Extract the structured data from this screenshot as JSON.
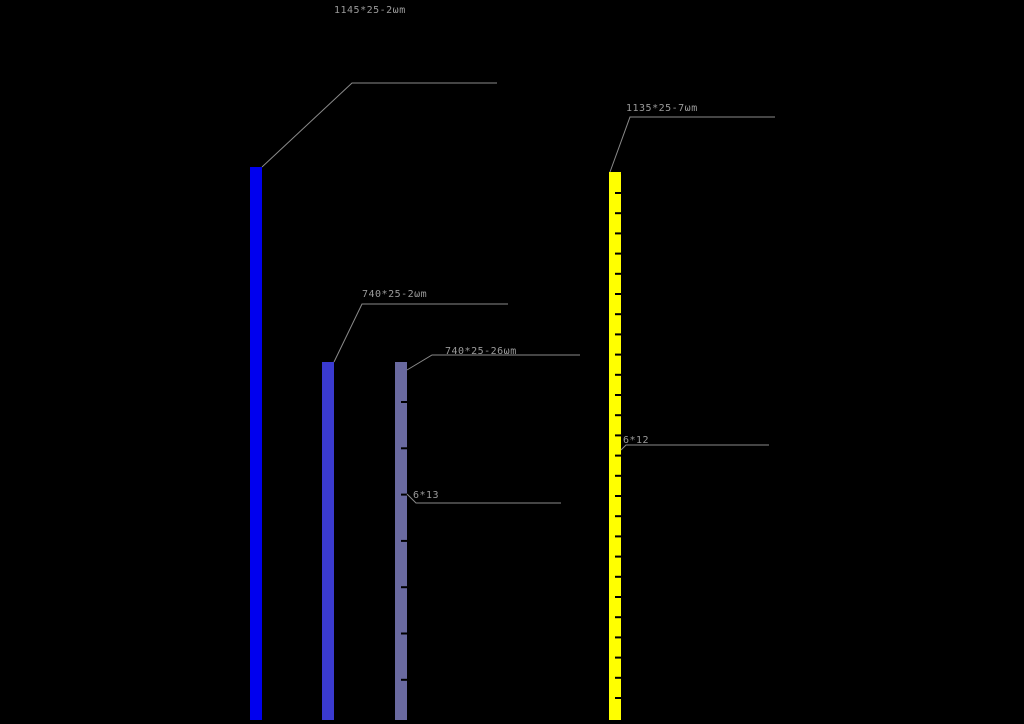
{
  "colors": {
    "background": "#000000",
    "leader": "#8a8a8a",
    "label_text": "#9a9a9a",
    "notch": "#000000"
  },
  "bars": [
    {
      "id": "bar-1",
      "label": "1145*25-2ωm",
      "color": "#0000ee",
      "notches": false
    },
    {
      "id": "bar-2",
      "label": "740*25-2ωm",
      "color": "#3a3ad0",
      "notches": false
    },
    {
      "id": "bar-3",
      "label": "740*25-26ωm",
      "color": "#6a6aa0",
      "notches": true,
      "notch_label": "6*13"
    },
    {
      "id": "bar-4",
      "label": "1135*25-7ωm",
      "color": "#ffff00",
      "notches": true,
      "notch_label": "6*12"
    }
  ]
}
